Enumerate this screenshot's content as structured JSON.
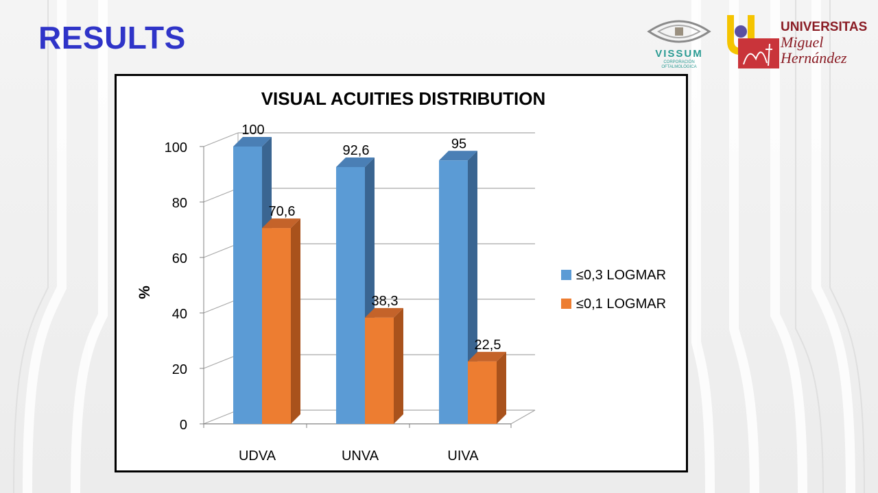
{
  "slide": {
    "title": "RESULTS"
  },
  "logos": {
    "vissum": {
      "name": "VISSUM",
      "subtitle_line1": "CORPORACIÓN",
      "subtitle_line2": "OFTALMOLÓGICA"
    },
    "umh": {
      "line1": "UNIVERSITAS",
      "line2": "Miguel",
      "line3": "Hernández"
    }
  },
  "colors": {
    "title": "#2f34c8",
    "series1": "#5b9bd5",
    "series2": "#ed7d31"
  },
  "chart_data": {
    "type": "bar",
    "title": "VISUAL ACUITIES DISTRIBUTION",
    "xlabel": "",
    "ylabel": "%",
    "categories": [
      "UDVA",
      "UNVA",
      "UIVA"
    ],
    "series": [
      {
        "name": "≤0,3 LOGMAR",
        "values": [
          100,
          92.6,
          95
        ],
        "labels": [
          "100",
          "92,6",
          "95"
        ]
      },
      {
        "name": "≤0,1 LOGMAR",
        "values": [
          70.6,
          38.3,
          22.5
        ],
        "labels": [
          "70,6",
          "38,3",
          "22,5"
        ]
      }
    ],
    "ylim": [
      0,
      100
    ],
    "yticks": [
      0,
      20,
      40,
      60,
      80,
      100
    ],
    "grid": true,
    "legend": "right",
    "style": "3d-clustered-column"
  }
}
